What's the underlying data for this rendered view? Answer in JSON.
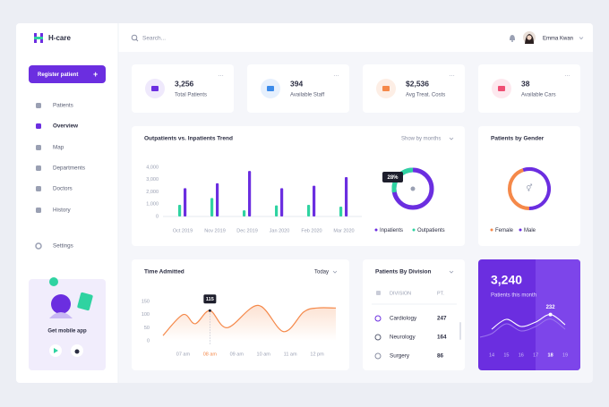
{
  "brand": "H-care",
  "search": "Search...",
  "user": "Emma Kwan",
  "sidebar": {
    "register": "Register patient",
    "nav": [
      "Patients",
      "Overview",
      "Map",
      "Departments",
      "Doctors",
      "History"
    ],
    "settings": "Settings",
    "app": "Get mobile app"
  },
  "stats": [
    {
      "value": "3,256",
      "label": "Total Patients",
      "color": "#6b2ee0",
      "bg": "#efe9fc"
    },
    {
      "value": "394",
      "label": "Available Staff",
      "color": "#3b8bea",
      "bg": "#e6f0fd"
    },
    {
      "value": "$2,536",
      "label": "Avg Treat. Costs",
      "color": "#f5894a",
      "bg": "#fdeee5"
    },
    {
      "value": "38",
      "label": "Available Cars",
      "color": "#ef4f74",
      "bg": "#fde8ee"
    }
  ],
  "trend": {
    "title": "Outpatients vs. Inpatients Trend",
    "filter": "Show by months",
    "categories": [
      "Oct 2019",
      "Nov 2019",
      "Dec 2019",
      "Jan 2020",
      "Feb 2020",
      "Mar 2020"
    ],
    "ylim": [
      0,
      4000
    ],
    "yticks": [
      0,
      {
        "value": 1000,
        "label": "1,000"
      },
      {
        "value": 2000,
        "label": "2,000"
      },
      {
        "value": 3000,
        "label": "3,000"
      },
      {
        "value": 4000,
        "label": "4,000"
      }
    ],
    "series": [
      {
        "name": "Inpatients",
        "color": "#6b2ee0",
        "values": [
          2300,
          2700,
          3700,
          2300,
          2500,
          3200
        ]
      },
      {
        "name": "Outpatients",
        "color": "#2fd3a1",
        "values": [
          950,
          1500,
          500,
          900,
          950,
          800
        ]
      }
    ],
    "share": {
      "value": 28,
      "label": "28%"
    }
  },
  "gender": {
    "title": "Patients by Gender",
    "series": [
      {
        "name": "Female",
        "color": "#f5894a",
        "value": 45
      },
      {
        "name": "Male",
        "color": "#6b2ee0",
        "value": 55
      }
    ]
  },
  "admitted": {
    "title": "Time Admitted",
    "filter": "Today",
    "color": "#f5894a",
    "x": [
      6.25,
      7.0,
      7.45,
      8.0,
      8.65,
      9.8,
      10.75,
      11.5,
      12.0,
      12.7
    ],
    "values": [
      20,
      100,
      65,
      115,
      50,
      135,
      35,
      110,
      125,
      125
    ],
    "xlim": [
      6.25,
      12.7
    ],
    "xticks": [
      {
        "value": 7,
        "label": "07 am"
      },
      {
        "value": 8,
        "label": "08 am"
      },
      {
        "value": 9,
        "label": "09 am"
      },
      {
        "value": 10,
        "label": "10 am"
      },
      {
        "value": 11,
        "label": "11 am"
      },
      {
        "value": 12,
        "label": "12 pm"
      }
    ],
    "ylim": [
      0,
      150
    ],
    "yticks": [
      0,
      50,
      100,
      150
    ]
  },
  "division": {
    "title": "Patients By Division",
    "columns": [
      "DIVISION",
      "PT."
    ],
    "rows": [
      [
        "Cardiology",
        247
      ],
      [
        "Neurology",
        164
      ],
      [
        "Surgery",
        86
      ]
    ]
  },
  "month": {
    "value": "3,240",
    "label": "Patients this month",
    "categories": [
      14,
      15,
      16,
      17,
      18,
      19
    ],
    "values": [
      150,
      205,
      165,
      190,
      232,
      175
    ],
    "ylim": [
      100,
      260
    ]
  }
}
